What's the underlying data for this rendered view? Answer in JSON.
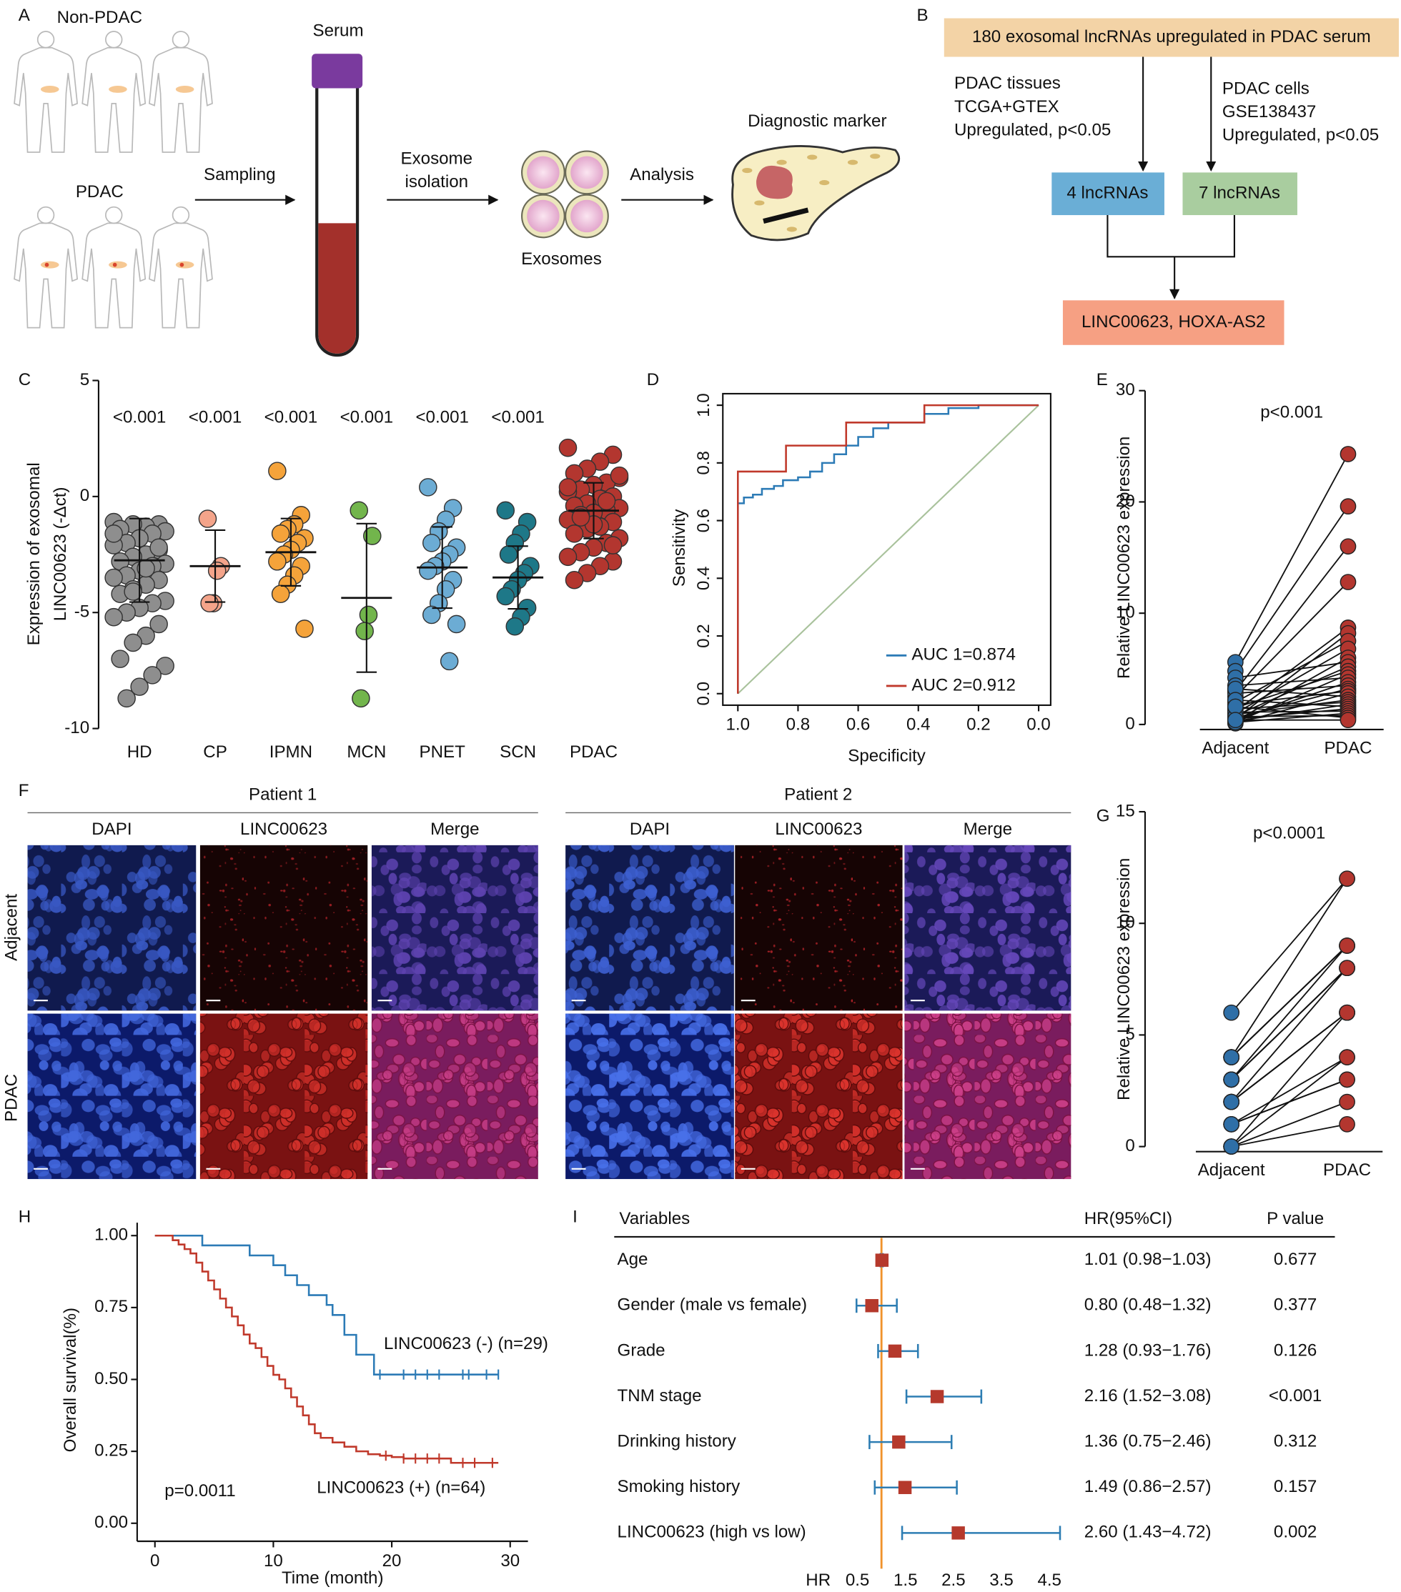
{
  "panel_labels": [
    "A",
    "B",
    "C",
    "D",
    "E",
    "F",
    "G",
    "H",
    "I"
  ],
  "panel_a": {
    "non_pdac": "Non-PDAC",
    "pdac": "PDAC",
    "serum": "Serum",
    "sampling": "Sampling",
    "isolation": [
      "Exosome",
      "isolation"
    ],
    "exosomes": "Exosomes",
    "analysis": "Analysis",
    "marker": "Diagnostic marker"
  },
  "panel_b": {
    "top": "180 exosomal lncRNAs upregulated in PDAC serum",
    "left": [
      "PDAC tissues",
      "TCGA+GTEX",
      "Upregulated, p<0.05"
    ],
    "right": [
      "PDAC cells",
      "GSE138437",
      "Upregulated, p<0.05"
    ],
    "box_left": "4 lncRNAs",
    "box_right": "7 lncRNAs",
    "result": "LINC00623, HOXA-AS2"
  },
  "panel_f": {
    "patients": [
      "Patient 1",
      "Patient 2"
    ],
    "channels": [
      "DAPI",
      "LINC00623",
      "Merge"
    ],
    "rows": [
      "Adjacent",
      "PDAC"
    ]
  },
  "chart_data": [
    {
      "type": "dotplot",
      "ylabel": [
        "Expression of exosomal",
        "LINC00623 (-Δct)"
      ],
      "categories": [
        "HD",
        "CP",
        "IPMN",
        "MCN",
        "PNET",
        "SCN",
        "PDAC"
      ],
      "colors": [
        "#8e8e8e",
        "#f4a48a",
        "#f5a33a",
        "#72b54c",
        "#6cacd4",
        "#1e7888",
        "#b3362f"
      ],
      "p_labels": [
        "<0.001",
        "<0.001",
        "<0.001",
        "<0.001",
        "<0.001",
        "<0.001",
        null
      ],
      "values": [
        [
          -1.1,
          -1.2,
          -1.3,
          -1.2,
          -1.4,
          -1.5,
          -1.6,
          -1.8,
          -2.0,
          -2.1,
          -2.3,
          -2.5,
          -2.6,
          -2.8,
          -2.9,
          -3.0,
          -3.2,
          -3.4,
          -3.5,
          -3.6,
          -3.8,
          -4.0,
          -4.2,
          -4.5,
          -4.6,
          -4.8,
          -5.0,
          -5.2,
          -5.5,
          -6.0,
          -6.3,
          -7.0,
          -7.3,
          -7.7,
          -8.2,
          -8.7,
          -1.6,
          -2.2,
          -3.1,
          -4.1
        ],
        [
          -0.96,
          -3.0,
          -3.2,
          -4.6,
          -4.6
        ],
        [
          1.1,
          -0.8,
          -1.2,
          -1.4,
          -1.6,
          -1.8,
          -2.0,
          -2.3,
          -2.5,
          -2.8,
          -3.0,
          -3.4,
          -3.8,
          -4.2,
          -5.7
        ],
        [
          -0.6,
          -1.7,
          -5.1,
          -5.8,
          -8.7
        ],
        [
          0.4,
          -0.5,
          -1.0,
          -1.5,
          -2.0,
          -2.2,
          -2.5,
          -2.8,
          -3.0,
          -3.2,
          -3.6,
          -4.0,
          -4.6,
          -5.1,
          -5.5,
          -7.1
        ],
        [
          -0.6,
          -1.1,
          -1.6,
          -2.0,
          -2.5,
          -3.0,
          -3.3,
          -3.6,
          -4.0,
          -4.3,
          -4.8,
          -5.2,
          -5.6
        ],
        [
          2.1,
          1.8,
          1.5,
          1.2,
          1.0,
          0.8,
          0.6,
          0.5,
          0.3,
          0.2,
          0.0,
          -0.1,
          -0.3,
          -0.4,
          -0.5,
          -0.6,
          -0.7,
          -0.8,
          -1.0,
          -1.1,
          -1.3,
          -1.4,
          -1.6,
          -1.8,
          -2.0,
          -2.2,
          -2.4,
          -2.6,
          -2.8,
          -3.0,
          -3.3,
          -3.6,
          0.9,
          -0.2,
          -1.2,
          -0.9,
          0.4,
          -2.1
        ]
      ],
      "means": [
        -2.75,
        -3.0,
        -2.4,
        -4.37,
        -3.06,
        -3.49,
        -0.61
      ],
      "sds": [
        1.8,
        1.55,
        1.45,
        3.2,
        1.75,
        1.35,
        1.2
      ],
      "ylim": [
        -10,
        5
      ],
      "yticks": [
        5,
        0,
        -5,
        -10
      ]
    },
    {
      "type": "line",
      "xlabel": "Specificity",
      "ylabel": "Sensitivity",
      "legend": "lower right",
      "xlim": [
        1.05,
        -0.04
      ],
      "ylim": [
        -0.04,
        1.04
      ],
      "xticks": [
        {
          "value": 1,
          "label": "1.0"
        },
        0.8,
        0.6,
        0.4,
        0.2,
        {
          "value": 0,
          "label": "0.0"
        }
      ],
      "yticks": [
        {
          "value": 0,
          "label": "0.0"
        },
        0.2,
        0.4,
        0.6,
        0.8,
        {
          "value": 1,
          "label": "1.0"
        }
      ],
      "diagonal_color": "#a9c29c",
      "series": [
        {
          "name": "AUC 1=0.874",
          "color": "#2c7bb6",
          "x": [
            1,
            1,
            0.98,
            0.98,
            0.95,
            0.95,
            0.92,
            0.92,
            0.88,
            0.88,
            0.85,
            0.85,
            0.8,
            0.8,
            0.76,
            0.76,
            0.72,
            0.72,
            0.68,
            0.68,
            0.64,
            0.64,
            0.6,
            0.6,
            0.55,
            0.55,
            0.5,
            0.5,
            0.38,
            0.38,
            0.3,
            0.3,
            0.2,
            0.2,
            0
          ],
          "values": [
            0,
            0.66,
            0.66,
            0.68,
            0.68,
            0.69,
            0.69,
            0.71,
            0.71,
            0.72,
            0.72,
            0.74,
            0.74,
            0.75,
            0.75,
            0.77,
            0.77,
            0.8,
            0.8,
            0.83,
            0.83,
            0.86,
            0.86,
            0.89,
            0.89,
            0.92,
            0.92,
            0.94,
            0.94,
            0.97,
            0.97,
            0.99,
            0.99,
            1,
            1
          ]
        },
        {
          "name": "AUC 2=0.912",
          "color": "#c0392b",
          "x": [
            1,
            1,
            0.84,
            0.84,
            0.64,
            0.64,
            0.38,
            0.38,
            0
          ],
          "values": [
            0,
            0.77,
            0.77,
            0.86,
            0.86,
            0.94,
            0.94,
            1,
            1
          ]
        }
      ]
    },
    {
      "type": "paired",
      "annotation": "p<0.001",
      "ylabel": "Relative LINC00623 expression",
      "categories": [
        "Adjacent",
        "PDAC"
      ],
      "colors": [
        "#2f6fa7",
        "#b3362f"
      ],
      "ylim": [
        0,
        30
      ],
      "yticks": [
        0,
        10,
        20,
        30
      ],
      "values": [
        [
          5.6,
          4.8,
          3.0,
          2.5,
          1.2,
          0.5,
          2.0,
          1.0,
          0.3,
          4.2,
          0.8,
          1.5,
          0.2,
          3.5,
          0.4,
          2.8,
          0.6,
          1.8,
          0.1,
          3.2,
          0.9,
          1.4,
          0.3,
          2.2,
          0.5,
          1.1,
          0.2,
          0.7,
          1.6,
          0.4
        ],
        [
          24.3,
          19.6,
          16,
          12.8,
          8.7,
          8.2,
          7.5,
          6.8,
          6.0,
          5.6,
          5.2,
          4.8,
          4.5,
          4.2,
          3.8,
          3.5,
          3.2,
          3.0,
          2.8,
          2.5,
          2.2,
          2.0,
          1.8,
          1.6,
          1.4,
          1.2,
          1.0,
          0.8,
          0.6,
          0.4
        ]
      ]
    },
    {
      "type": "paired",
      "annotation": "p<0.0001",
      "ylabel": "Relative LINC00623 expression",
      "categories": [
        "Adjacent",
        "PDAC"
      ],
      "colors": [
        "#2f6fa7",
        "#b3362f"
      ],
      "ylim": [
        0,
        15
      ],
      "yticks": [
        0,
        5,
        10,
        15
      ],
      "values": [
        [
          6,
          4,
          4,
          3,
          3,
          2,
          2,
          1,
          1,
          0,
          0,
          4,
          3,
          2,
          0,
          0,
          1,
          3,
          2,
          4
        ],
        [
          12,
          9,
          9,
          8,
          8,
          6,
          6,
          4,
          3,
          2,
          1,
          12,
          9,
          8,
          6,
          4,
          3,
          8,
          6,
          9
        ]
      ]
    },
    {
      "type": "survival",
      "xlabel": "Time (month)",
      "ylabel": "Overall survival(%)",
      "annotation": "p=0.0011",
      "xlim": [
        -1.5,
        31.5
      ],
      "ylim": [
        -0.045,
        1.045
      ],
      "xticks": [
        0,
        10,
        20,
        30
      ],
      "yticks": [
        {
          "value": 1,
          "label": "1.00"
        },
        0.75,
        {
          "value": 0.5,
          "label": "0.50"
        },
        0.25,
        {
          "value": 0,
          "label": "0.00"
        }
      ],
      "series": [
        {
          "name": "LINC00623 (-) (n=29)",
          "color": "#2c7bb6",
          "x": [
            0,
            4,
            8,
            10,
            11,
            12,
            13,
            14.5,
            15,
            16,
            17,
            18.5,
            29
          ],
          "values": [
            1,
            0.966,
            0.931,
            0.897,
            0.862,
            0.828,
            0.793,
            0.759,
            0.724,
            0.655,
            0.586,
            0.517,
            0.517
          ],
          "censored": [
            19,
            21,
            22,
            23,
            24,
            26,
            26.5,
            28,
            29
          ]
        },
        {
          "name": "LINC00623 (+) (n=64)",
          "color": "#c0392b",
          "x": [
            0,
            1.5,
            2,
            2.5,
            3,
            3.5,
            4,
            4.5,
            5,
            5.5,
            6,
            6.5,
            7,
            7.5,
            8,
            8.5,
            9,
            9.5,
            10,
            10.5,
            11,
            11.5,
            12,
            12.5,
            13,
            13.5,
            14,
            15,
            16,
            17,
            18,
            19,
            20,
            21,
            25,
            29
          ],
          "values": [
            1,
            0.984,
            0.969,
            0.953,
            0.938,
            0.906,
            0.875,
            0.844,
            0.813,
            0.781,
            0.75,
            0.719,
            0.688,
            0.656,
            0.625,
            0.609,
            0.578,
            0.547,
            0.516,
            0.5,
            0.469,
            0.438,
            0.406,
            0.375,
            0.344,
            0.313,
            0.297,
            0.281,
            0.266,
            0.25,
            0.24,
            0.235,
            0.23,
            0.225,
            0.21,
            0.21
          ],
          "censored": [
            19.5,
            21,
            22,
            23,
            24,
            26,
            27,
            28.5
          ]
        }
      ]
    },
    {
      "type": "forest",
      "header": [
        "Variables",
        "HR(95%CI)",
        "P value"
      ],
      "xlabel": "HR",
      "categories": [
        "Age",
        "Gender (male vs female)",
        "Grade",
        "TNM stage",
        "Drinking history",
        "Smoking history",
        "LINC00623 (high vs low)"
      ],
      "values": [
        1.01,
        0.8,
        1.28,
        2.16,
        1.36,
        1.49,
        2.6
      ],
      "lower": [
        0.98,
        0.48,
        0.93,
        1.52,
        0.75,
        0.86,
        1.43
      ],
      "upper": [
        1.03,
        1.32,
        1.76,
        3.08,
        2.46,
        2.57,
        4.72
      ],
      "hr_labels": [
        "1.01 (0.98−1.03)",
        "0.80 (0.48−1.32)",
        "1.28 (0.93−1.76)",
        "2.16 (1.52−3.08)",
        "1.36 (0.75−2.46)",
        "1.49 (0.86−2.57)",
        "2.60 (1.43−4.72)"
      ],
      "p_values": [
        "0.677",
        "0.377",
        "0.126",
        "<0.001",
        "0.312",
        "0.157",
        "0.002"
      ],
      "xlim": [
        0,
        4.8
      ],
      "xticks": [
        0.5,
        1.5,
        2.5,
        3.5,
        4.5
      ],
      "reference": 1,
      "marker_color": "#b5392c",
      "whisker_color": "#2d7db3",
      "reference_color": "#f0922b"
    }
  ]
}
